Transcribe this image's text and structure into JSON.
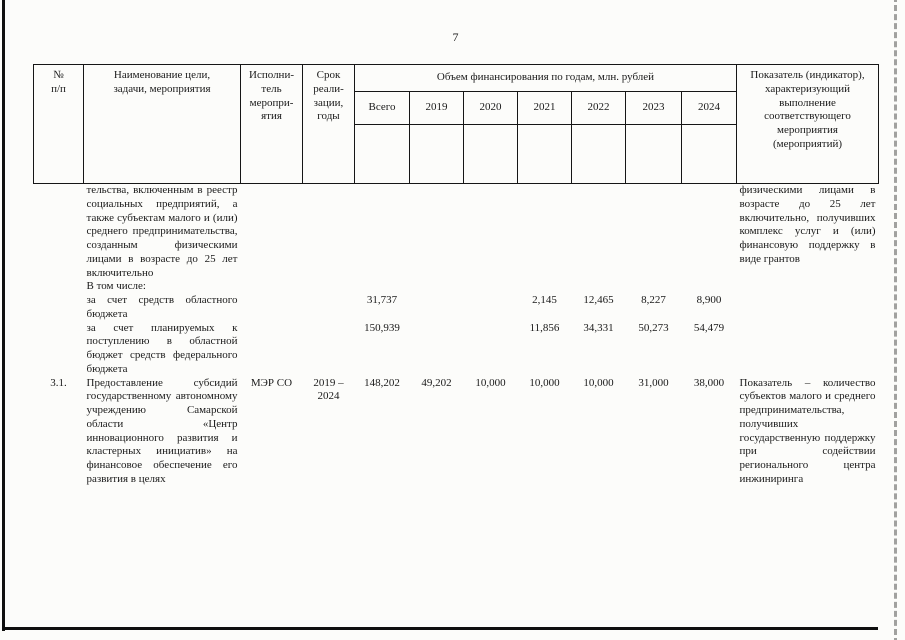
{
  "page": {
    "number": "7"
  },
  "table": {
    "header": {
      "num": "№\nп/п",
      "name": "Наименование цели,\nзадачи, мероприятия",
      "executor": "Исполни-\nтель\nмеропри-\nятия",
      "term": "Срок\nреали-\nзации,\nгоды",
      "financing": "Объем финансирования по годам, млн. рублей",
      "years": [
        "Всего",
        "2019",
        "2020",
        "2021",
        "2022",
        "2023",
        "2024"
      ],
      "indicator": "Показатель (индикатор),\nхарактеризующий\nвыполнение\nсоответствующего\nмероприятия\n(мероприятий)"
    },
    "rows": [
      {
        "name": "тельства, включенным в реестр социальных предприятий, а также субъектам малого и (или) среднего предпринимательства, созданным физическими лицами в возрасте до 25 лет включительно",
        "name_sub": "В том числе:",
        "indicator": "физическими лицами в возрасте до 25 лет включительно, получивших комплекс услуг и (или) финансовую поддержку в виде грантов"
      },
      {
        "name": "за счет средств областного бюджета",
        "total": "31,737",
        "y2021": "2,145",
        "y2022": "12,465",
        "y2023": "8,227",
        "y2024": "8,900"
      },
      {
        "name": "за счет планируемых к поступлению в областной бюджет средств федерального бюджета",
        "total": "150,939",
        "y2021": "11,856",
        "y2022": "34,331",
        "y2023": "50,273",
        "y2024": "54,479"
      },
      {
        "num": "3.1.",
        "name": "Предоставление субсидий государственному автономному учреждению Самарской области «Центр инновационного развития и кластерных инициатив» на финансовое обеспечение его развития в целях",
        "executor": "МЭР СО",
        "term": "2019 –\n2024",
        "total": "148,202",
        "y2019": "49,202",
        "y2020": "10,000",
        "y2021": "10,000",
        "y2022": "10,000",
        "y2023": "31,000",
        "y2024": "38,000",
        "indicator": "Показатель – количество субъектов малого и среднего предпринимательства, получивших государственную поддержку при содействии регионального центра инжиниринга"
      }
    ]
  }
}
